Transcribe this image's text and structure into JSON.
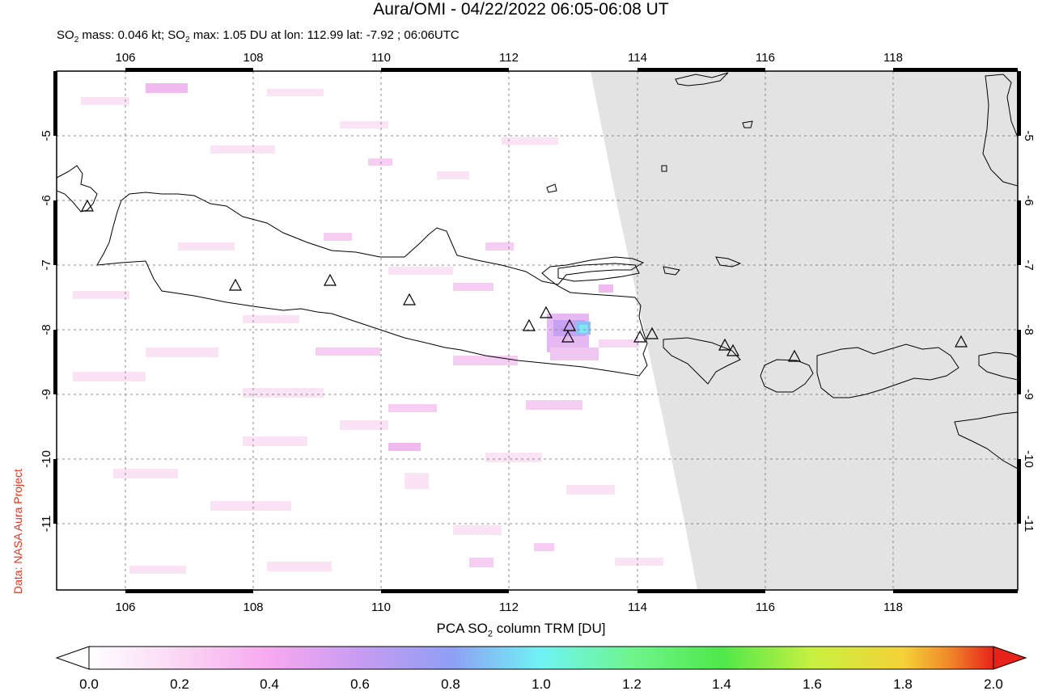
{
  "title": "Aura/OMI - 04/22/2022 06:05-06:08 UT",
  "subtitle": {
    "p1": "SO",
    "sub1": "2",
    "p2": " mass: 0.046 kt; SO",
    "sub2": "2",
    "p3": " max: 1.05 DU at lon: 112.99 lat: -7.92 ; 06:06UTC"
  },
  "credit": "Data: NASA Aura Project",
  "colorbar": {
    "label_pre": "PCA SO",
    "label_sub": "2",
    "label_post": " column TRM [DU]",
    "ticks": [
      "0.0",
      "0.2",
      "0.4",
      "0.6",
      "0.8",
      "1.0",
      "1.2",
      "1.4",
      "1.6",
      "1.8",
      "2.0"
    ],
    "colors": [
      "#ffffff",
      "#fbd6f4",
      "#f7a8f0",
      "#c79cf2",
      "#8f9ff4",
      "#6ff3f4",
      "#6ef58c",
      "#4fe84a",
      "#c8f040",
      "#f5d238",
      "#f08a2a",
      "#e8231a"
    ]
  },
  "map": {
    "lon_ticks": [
      "106",
      "108",
      "110",
      "112",
      "114",
      "116",
      "118"
    ],
    "lat_ticks": [
      "-5",
      "-6",
      "-7",
      "-8",
      "-9",
      "-10",
      "-11"
    ],
    "no_data_color": "#e3e3e3"
  }
}
